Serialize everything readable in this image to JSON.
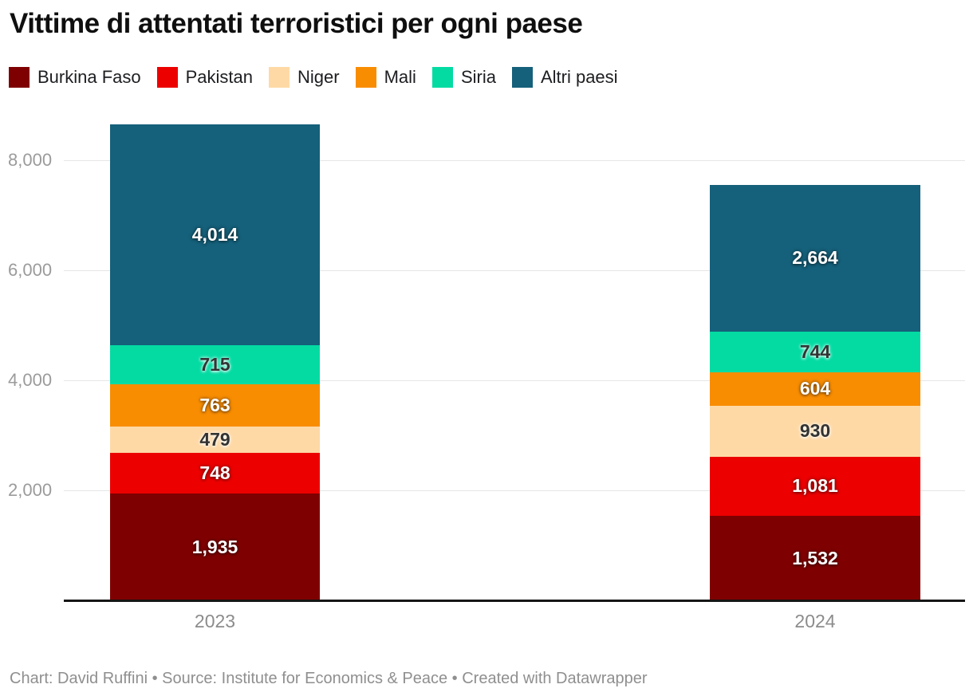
{
  "title": "Vittime di attentati terroristici per ogni paese",
  "footer": "Chart: David Ruffini • Source: Institute for Economics & Peace • Created with Datawrapper",
  "chart_data": {
    "type": "bar",
    "stacked": true,
    "title": "Vittime di attentati terroristici per ogni paese",
    "categories": [
      "2023",
      "2024"
    ],
    "series": [
      {
        "name": "Burkina Faso",
        "color": "#7f0000",
        "label_style": "light",
        "values": [
          1935,
          1532
        ],
        "labels": [
          "1,935",
          "1,532"
        ]
      },
      {
        "name": "Pakistan",
        "color": "#ec0000",
        "label_style": "light",
        "values": [
          748,
          1081
        ],
        "labels": [
          "748",
          "1,081"
        ]
      },
      {
        "name": "Niger",
        "color": "#fed9a6",
        "label_style": "dark",
        "values": [
          479,
          930
        ],
        "labels": [
          "479",
          "930"
        ]
      },
      {
        "name": "Mali",
        "color": "#f88d01",
        "label_style": "light",
        "values": [
          763,
          604
        ],
        "labels": [
          "763",
          "604"
        ]
      },
      {
        "name": "Siria",
        "color": "#03dba3",
        "label_style": "dark",
        "values": [
          715,
          744
        ],
        "labels": [
          "715",
          "744"
        ]
      },
      {
        "name": "Altri paesi",
        "color": "#15607a",
        "label_style": "light",
        "values": [
          4014,
          2664
        ],
        "labels": [
          "4,014",
          "2,664"
        ]
      }
    ],
    "totals": [
      8654,
      7555
    ],
    "y_axis": {
      "tick_values": [
        2000,
        4000,
        6000,
        8000
      ],
      "tick_labels": [
        "2,000",
        "4,000",
        "6,000",
        "8,000"
      ],
      "min": 0,
      "max": 8800
    },
    "grid": true,
    "legend_position": "top",
    "colors": {
      "background": "#ffffff",
      "gridline": "#e6e6e6",
      "axis_line": "#161616",
      "tick_text": "#9b9b9b",
      "category_text": "#8c8c8c",
      "footer_text": "#8f8f8f",
      "title_text": "#0f0f0f"
    }
  }
}
